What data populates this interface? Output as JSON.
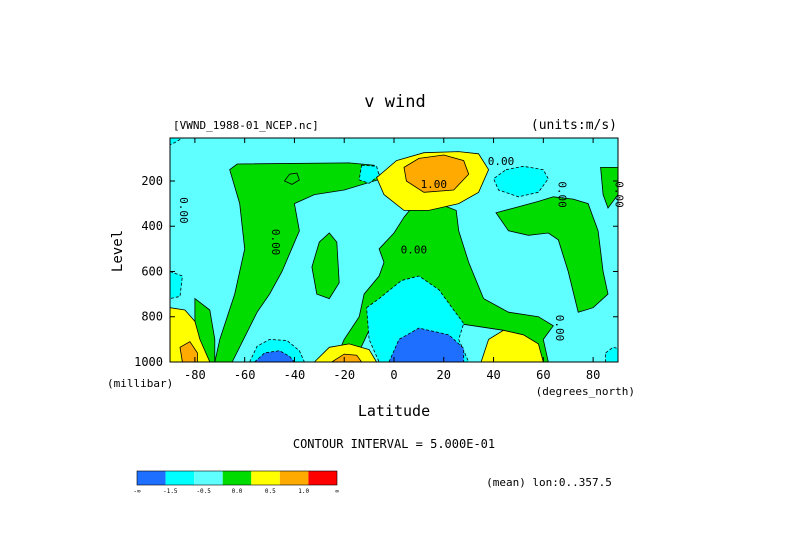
{
  "chart_data": {
    "type": "heatmap",
    "title": "v wind",
    "file_label": "[VWND_1988-01_NCEP.nc]",
    "units_label": "(units:m/s)",
    "xlabel": "Latitude",
    "x_unit_label": "(degrees_north)",
    "ylabel": "Level",
    "y_unit_label": "(millibar)",
    "xlim": [
      -90,
      90
    ],
    "ylim": [
      1000,
      10
    ],
    "x_ticks": [
      -80,
      -60,
      -40,
      -20,
      0,
      20,
      40,
      60,
      80
    ],
    "x_tick_labels": [
      "-80",
      "-60",
      "-40",
      "-20",
      "0",
      "20",
      "40",
      "60",
      "80"
    ],
    "y_ticks": [
      200,
      400,
      600,
      800,
      1000
    ],
    "y_tick_labels": [
      "200",
      "400",
      "600",
      "800",
      "1000"
    ],
    "contour_interval_text": "CONTOUR INTERVAL = 5.000E-01",
    "mean_text": "(mean) lon:0..357.5",
    "contour_labels": [
      {
        "text": "0.00",
        "lat": 43,
        "level": 130,
        "rotate": 0
      },
      {
        "text": "1.00",
        "lat": 16,
        "level": 230,
        "rotate": 0
      },
      {
        "text": "0.00",
        "lat": 8,
        "level": 520,
        "rotate": 0
      },
      {
        "text": "0.00",
        "lat": -86,
        "level": 330,
        "rotate": 90
      },
      {
        "text": "0.00",
        "lat": -49,
        "level": 470,
        "rotate": 90
      },
      {
        "text": "0.00",
        "lat": 66,
        "level": 260,
        "rotate": 90
      },
      {
        "text": "0.00",
        "lat": 89,
        "level": 260,
        "rotate": 90
      },
      {
        "text": "0.00",
        "lat": 65,
        "level": 850,
        "rotate": 90
      }
    ],
    "colorbar": {
      "colors": [
        "#1e6eff",
        "#00ffff",
        "#5fffff",
        "#00dc00",
        "#ffff00",
        "#ffaa00",
        "#ff0000"
      ],
      "labels": [
        "-∞",
        "-1.5",
        "-0.5",
        "0.0",
        "0.5",
        "1.0",
        "∞"
      ]
    },
    "regions": [
      {
        "level": 2,
        "pts": [
          [
            -90,
            10
          ],
          [
            90,
            10
          ],
          [
            90,
            1000
          ],
          [
            -90,
            1000
          ]
        ]
      },
      {
        "level": 3,
        "pts": [
          [
            -63,
            125
          ],
          [
            -18,
            120
          ],
          [
            -8,
            130
          ],
          [
            -5,
            190
          ],
          [
            -20,
            240
          ],
          [
            -32,
            260
          ],
          [
            -40,
            300
          ],
          [
            -38,
            420
          ],
          [
            -45,
            600
          ],
          [
            -50,
            700
          ],
          [
            -55,
            780
          ],
          [
            -65,
            1000
          ],
          [
            -72,
            1000
          ],
          [
            -70,
            900
          ],
          [
            -64,
            700
          ],
          [
            -60,
            500
          ],
          [
            -62,
            300
          ],
          [
            -66,
            150
          ]
        ]
      },
      {
        "level": 3,
        "pts": [
          [
            -30,
            470
          ],
          [
            -26,
            430
          ],
          [
            -23,
            470
          ],
          [
            -22,
            650
          ],
          [
            -26,
            720
          ],
          [
            -31,
            700
          ],
          [
            -33,
            580
          ]
        ]
      },
      {
        "level": 3,
        "pts": [
          [
            7,
            320
          ],
          [
            18,
            300
          ],
          [
            25,
            330
          ],
          [
            26,
            420
          ],
          [
            30,
            560
          ],
          [
            36,
            720
          ],
          [
            46,
            780
          ],
          [
            58,
            800
          ],
          [
            64,
            840
          ],
          [
            60,
            900
          ],
          [
            62,
            1000
          ],
          [
            55,
            1000
          ],
          [
            44,
            860
          ],
          [
            20,
            820
          ],
          [
            -10,
            860
          ],
          [
            -16,
            1000
          ],
          [
            -24,
            1000
          ],
          [
            -20,
            900
          ],
          [
            -14,
            800
          ],
          [
            -12,
            700
          ],
          [
            -6,
            620
          ],
          [
            -4,
            560
          ],
          [
            -6,
            500
          ],
          [
            0,
            430
          ],
          [
            4,
            360
          ]
        ]
      },
      {
        "level": 3,
        "pts": [
          [
            41,
            340
          ],
          [
            48,
            320
          ],
          [
            58,
            290
          ],
          [
            64,
            270
          ],
          [
            72,
            280
          ],
          [
            78,
            300
          ],
          [
            82,
            420
          ],
          [
            84,
            600
          ],
          [
            86,
            700
          ],
          [
            80,
            760
          ],
          [
            74,
            780
          ],
          [
            70,
            600
          ],
          [
            66,
            460
          ],
          [
            62,
            430
          ],
          [
            54,
            440
          ],
          [
            46,
            420
          ]
        ]
      },
      {
        "level": 3,
        "pts": [
          [
            83,
            140
          ],
          [
            90,
            140
          ],
          [
            90,
            260
          ],
          [
            86,
            320
          ],
          [
            84,
            260
          ]
        ]
      },
      {
        "level": 3,
        "pts": [
          [
            -80,
            720
          ],
          [
            -74,
            770
          ],
          [
            -72,
            900
          ],
          [
            -72,
            1000
          ],
          [
            -80,
            1000
          ]
        ]
      },
      {
        "level": 4,
        "pts": [
          [
            -7,
            185
          ],
          [
            1,
            110
          ],
          [
            12,
            75
          ],
          [
            26,
            70
          ],
          [
            34,
            80
          ],
          [
            38,
            150
          ],
          [
            34,
            250
          ],
          [
            26,
            300
          ],
          [
            14,
            330
          ],
          [
            4,
            330
          ],
          [
            -4,
            260
          ]
        ]
      },
      {
        "level": 5,
        "pts": [
          [
            4,
            140
          ],
          [
            10,
            100
          ],
          [
            20,
            85
          ],
          [
            28,
            110
          ],
          [
            30,
            170
          ],
          [
            24,
            240
          ],
          [
            12,
            250
          ],
          [
            5,
            200
          ]
        ]
      },
      {
        "level": 1,
        "pts": [
          [
            45,
            150
          ],
          [
            52,
            135
          ],
          [
            60,
            150
          ],
          [
            62,
            190
          ],
          [
            58,
            250
          ],
          [
            50,
            270
          ],
          [
            42,
            240
          ],
          [
            40,
            190
          ]
        ]
      },
      {
        "level": 1,
        "pts": [
          [
            -13,
            130
          ],
          [
            -7,
            135
          ],
          [
            -6,
            175
          ],
          [
            -10,
            210
          ],
          [
            -14,
            195
          ]
        ]
      },
      {
        "level": 3,
        "pts": [
          [
            -42,
            170
          ],
          [
            -39,
            165
          ],
          [
            -38,
            195
          ],
          [
            -41,
            215
          ],
          [
            -44,
            200
          ]
        ]
      },
      {
        "level": 1,
        "pts": [
          [
            -11,
            760
          ],
          [
            -6,
            720
          ],
          [
            3,
            640
          ],
          [
            10,
            620
          ],
          [
            18,
            680
          ],
          [
            24,
            770
          ],
          [
            28,
            830
          ],
          [
            26,
            900
          ],
          [
            30,
            1000
          ],
          [
            -6,
            1000
          ],
          [
            -10,
            900
          ]
        ]
      },
      {
        "level": 0,
        "pts": [
          [
            -2,
            1000
          ],
          [
            2,
            900
          ],
          [
            10,
            850
          ],
          [
            22,
            880
          ],
          [
            28,
            940
          ],
          [
            28,
            1000
          ]
        ]
      },
      {
        "level": 1,
        "pts": [
          [
            -58,
            1000
          ],
          [
            -55,
            930
          ],
          [
            -50,
            900
          ],
          [
            -43,
            905
          ],
          [
            -38,
            950
          ],
          [
            -36,
            1000
          ]
        ]
      },
      {
        "level": 0,
        "pts": [
          [
            -56,
            1000
          ],
          [
            -52,
            960
          ],
          [
            -46,
            950
          ],
          [
            -42,
            975
          ],
          [
            -40,
            1000
          ]
        ]
      },
      {
        "level": 4,
        "pts": [
          [
            -32,
            1000
          ],
          [
            -26,
            935
          ],
          [
            -18,
            920
          ],
          [
            -10,
            945
          ],
          [
            -7,
            1000
          ]
        ]
      },
      {
        "level": 5,
        "pts": [
          [
            -25,
            1000
          ],
          [
            -20,
            965
          ],
          [
            -15,
            970
          ],
          [
            -13,
            1000
          ]
        ]
      },
      {
        "level": 4,
        "pts": [
          [
            35,
            1000
          ],
          [
            38,
            900
          ],
          [
            44,
            860
          ],
          [
            52,
            880
          ],
          [
            58,
            920
          ],
          [
            60,
            1000
          ]
        ]
      },
      {
        "level": 4,
        "pts": [
          [
            -90,
            760
          ],
          [
            -84,
            770
          ],
          [
            -80,
            820
          ],
          [
            -78,
            900
          ],
          [
            -74,
            1000
          ],
          [
            -90,
            1000
          ]
        ]
      },
      {
        "level": 5,
        "pts": [
          [
            -85,
            1000
          ],
          [
            -86,
            935
          ],
          [
            -82,
            910
          ],
          [
            -79,
            960
          ],
          [
            -79,
            1000
          ]
        ]
      },
      {
        "level": 1,
        "pts": [
          [
            -90,
            600
          ],
          [
            -85,
            620
          ],
          [
            -86,
            710
          ],
          [
            -90,
            720
          ]
        ]
      },
      {
        "level": 1,
        "pts": [
          [
            85,
            960
          ],
          [
            88,
            935
          ],
          [
            90,
            940
          ],
          [
            90,
            1000
          ],
          [
            85,
            1000
          ]
        ]
      },
      {
        "level": 1,
        "pts": [
          [
            -90,
            10
          ],
          [
            -85,
            10
          ],
          [
            -88,
            30
          ],
          [
            -90,
            40
          ]
        ]
      }
    ]
  }
}
